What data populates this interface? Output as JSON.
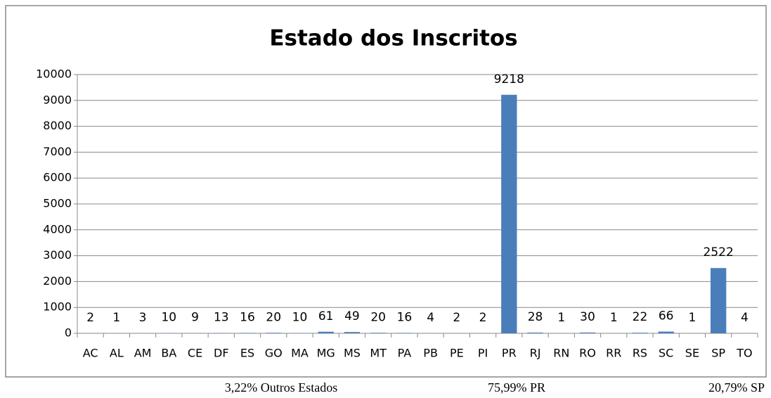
{
  "chart_data": {
    "type": "bar",
    "title": "Estado dos Inscritos",
    "categories": [
      "AC",
      "AL",
      "AM",
      "BA",
      "CE",
      "DF",
      "ES",
      "GO",
      "MA",
      "MG",
      "MS",
      "MT",
      "PA",
      "PB",
      "PE",
      "PI",
      "PR",
      "RJ",
      "RN",
      "RO",
      "RR",
      "RS",
      "SC",
      "SE",
      "SP",
      "TO"
    ],
    "values": [
      2,
      1,
      3,
      10,
      9,
      13,
      16,
      20,
      10,
      61,
      49,
      20,
      16,
      4,
      2,
      2,
      9218,
      28,
      1,
      30,
      1,
      22,
      66,
      1,
      2522,
      4
    ],
    "color": "#4a7ebb",
    "ylim": [
      0,
      10000
    ],
    "yticks": [
      0,
      1000,
      2000,
      3000,
      4000,
      5000,
      6000,
      7000,
      8000,
      9000,
      10000
    ],
    "grid": true,
    "annotations": [
      "3,22% Outros Estados",
      "75,99% PR",
      "20,79% SP"
    ]
  }
}
